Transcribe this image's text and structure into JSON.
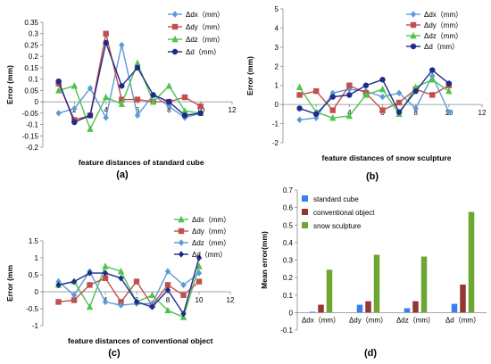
{
  "chart_data": [
    {
      "panel": "(a)",
      "type": "line",
      "xlabel": "feature distances of standard cube",
      "ylabel": "Error (mm)",
      "xlim": [
        0,
        12
      ],
      "ylim": [
        -0.2,
        0.35
      ],
      "xticks": [
        0,
        2,
        4,
        6,
        8,
        10,
        12
      ],
      "yticks": [
        -0.2,
        -0.15,
        -0.1,
        -0.05,
        0,
        0.05,
        0.1,
        0.15,
        0.2,
        0.25,
        0.3,
        0.35
      ],
      "xtick_labels": [
        "0",
        "2",
        "4",
        "6",
        "8",
        "10",
        "12"
      ],
      "ytick_labels": [
        "-0.2",
        "-0.15",
        "-0.1",
        "-0.05",
        "0",
        "0.05",
        "0.1",
        "0.15",
        "0.2",
        "0.25",
        "0.3",
        "0.35"
      ],
      "x": [
        1,
        2,
        3,
        4,
        5,
        6,
        7,
        8,
        9,
        10
      ],
      "legend_position": "top-right",
      "series": [
        {
          "name": "Δdx（mm）",
          "color": "#5b9bd5",
          "marker": "diamond",
          "values": [
            -0.05,
            -0.03,
            0.06,
            -0.07,
            0.25,
            -0.06,
            0.03,
            -0.02,
            -0.07,
            -0.05
          ]
        },
        {
          "name": "Δdy（mm）",
          "color": "#c0504d",
          "marker": "square",
          "values": [
            0.08,
            -0.08,
            -0.06,
            0.3,
            0.01,
            0.01,
            0.0,
            0.0,
            0.02,
            -0.02
          ]
        },
        {
          "name": "Δdz（mm）",
          "color": "#4ec34e",
          "marker": "triangle",
          "values": [
            0.05,
            0.07,
            -0.12,
            0.02,
            -0.01,
            0.17,
            0.0,
            0.07,
            -0.04,
            -0.05
          ]
        },
        {
          "name": "Δd（mm）",
          "color": "#1f2a8c",
          "marker": "circle",
          "values": [
            0.09,
            -0.09,
            -0.06,
            0.26,
            0.07,
            0.15,
            0.03,
            0.0,
            -0.06,
            -0.05
          ]
        }
      ]
    },
    {
      "panel": "(b)",
      "type": "line",
      "xlabel": "feature distances of snow sculpture",
      "ylabel": "Error (mm)",
      "xlim": [
        0,
        12
      ],
      "ylim": [
        -2,
        5
      ],
      "xticks": [
        0,
        2,
        4,
        6,
        8,
        10,
        12
      ],
      "yticks": [
        -2,
        -1,
        0,
        1,
        2,
        3,
        4,
        5
      ],
      "xtick_labels": [
        "0",
        "2",
        "4",
        "6",
        "8",
        "10",
        "12"
      ],
      "ytick_labels": [
        "-2",
        "-1",
        "0",
        "1",
        "2",
        "3",
        "4",
        "5"
      ],
      "x": [
        1,
        2,
        3,
        4,
        5,
        6,
        7,
        8,
        9,
        10
      ],
      "legend_position": "top-right",
      "series": [
        {
          "name": "Δdx（mm）",
          "color": "#5b9bd5",
          "marker": "diamond",
          "values": [
            -0.8,
            -0.7,
            0.6,
            0.8,
            0.7,
            0.4,
            0.6,
            -0.2,
            1.5,
            -0.4
          ]
        },
        {
          "name": "Δdy（mm）",
          "color": "#c0504d",
          "marker": "square",
          "values": [
            0.5,
            0.7,
            -0.3,
            1.0,
            0.6,
            -0.3,
            0.1,
            0.8,
            0.5,
            1.0
          ]
        },
        {
          "name": "Δdz（mm）",
          "color": "#4ec34e",
          "marker": "triangle",
          "values": [
            0.9,
            -0.4,
            -0.7,
            -0.6,
            0.5,
            0.8,
            -0.5,
            0.9,
            1.3,
            0.7
          ]
        },
        {
          "name": "Δd（mm）",
          "color": "#1f2a8c",
          "marker": "circle",
          "values": [
            -0.2,
            -0.5,
            0.4,
            0.5,
            1.0,
            1.3,
            -0.4,
            0.7,
            1.8,
            1.1
          ]
        }
      ]
    },
    {
      "panel": "(c)",
      "type": "line",
      "xlabel": "feature distances of conventional object",
      "ylabel": "Error (mm",
      "xlim": [
        0,
        12
      ],
      "ylim": [
        -1,
        1.5
      ],
      "xticks": [
        0,
        2,
        4,
        6,
        8,
        10,
        12
      ],
      "yticks": [
        -1,
        -0.5,
        0,
        0.5,
        1,
        1.5
      ],
      "xtick_labels": [
        "0",
        "2",
        "4",
        "6",
        "8",
        "10",
        "12"
      ],
      "ytick_labels": [
        "-1",
        "-0.5",
        "0",
        "0.5",
        "1",
        "1.5"
      ],
      "x": [
        1,
        2,
        3,
        4,
        5,
        6,
        7,
        8,
        9,
        10
      ],
      "legend_position": "top-right",
      "series": [
        {
          "name": "Δdx（mm）",
          "color": "#4ec34e",
          "marker": "triangle",
          "values": [
            0.2,
            0.3,
            -0.45,
            0.75,
            0.6,
            -0.3,
            -0.1,
            -0.55,
            -0.75,
            0.75
          ]
        },
        {
          "name": "Δdy（mm）",
          "color": "#c0504d",
          "marker": "square",
          "values": [
            -0.3,
            -0.25,
            0.2,
            0.4,
            -0.3,
            0.3,
            -0.4,
            0.2,
            -0.1,
            0.3
          ]
        },
        {
          "name": "Δdz（mm）",
          "color": "#5b9bd5",
          "marker": "diamond",
          "values": [
            0.3,
            -0.1,
            0.6,
            -0.3,
            -0.4,
            -0.35,
            -0.35,
            0.6,
            0.2,
            0.55
          ]
        },
        {
          "name": "Δd（mm）",
          "color": "#1f2a8c",
          "marker": "diamond",
          "values": [
            0.2,
            0.3,
            0.55,
            0.55,
            0.4,
            -0.3,
            -0.45,
            0.05,
            -0.65,
            1.0
          ]
        }
      ]
    },
    {
      "panel": "(d)",
      "type": "bar",
      "ylabel": "Mean error(mm)",
      "ylim": [
        -0.1,
        0.7
      ],
      "yticks": [
        -0.1,
        0,
        0.1,
        0.2,
        0.3,
        0.4,
        0.5,
        0.6,
        0.7
      ],
      "ytick_labels": [
        "-0.1",
        "0",
        "0.1",
        "0.2",
        "0.3",
        "0.4",
        "0.5",
        "0.6",
        "0.7"
      ],
      "categories": [
        "Δdx（mm）",
        "Δdy（mm）",
        "Δdz（mm）",
        "Δd（mm）"
      ],
      "legend_position": "top-left",
      "series": [
        {
          "name": "standard cube",
          "color": "#3a7ff0",
          "values": [
            0.005,
            0.045,
            0.025,
            0.05
          ]
        },
        {
          "name": "conventional object",
          "color": "#943634",
          "values": [
            0.045,
            0.065,
            0.065,
            0.16
          ]
        },
        {
          "name": "snow sculpture",
          "color": "#6da632",
          "values": [
            0.245,
            0.33,
            0.32,
            0.575
          ]
        }
      ]
    }
  ]
}
